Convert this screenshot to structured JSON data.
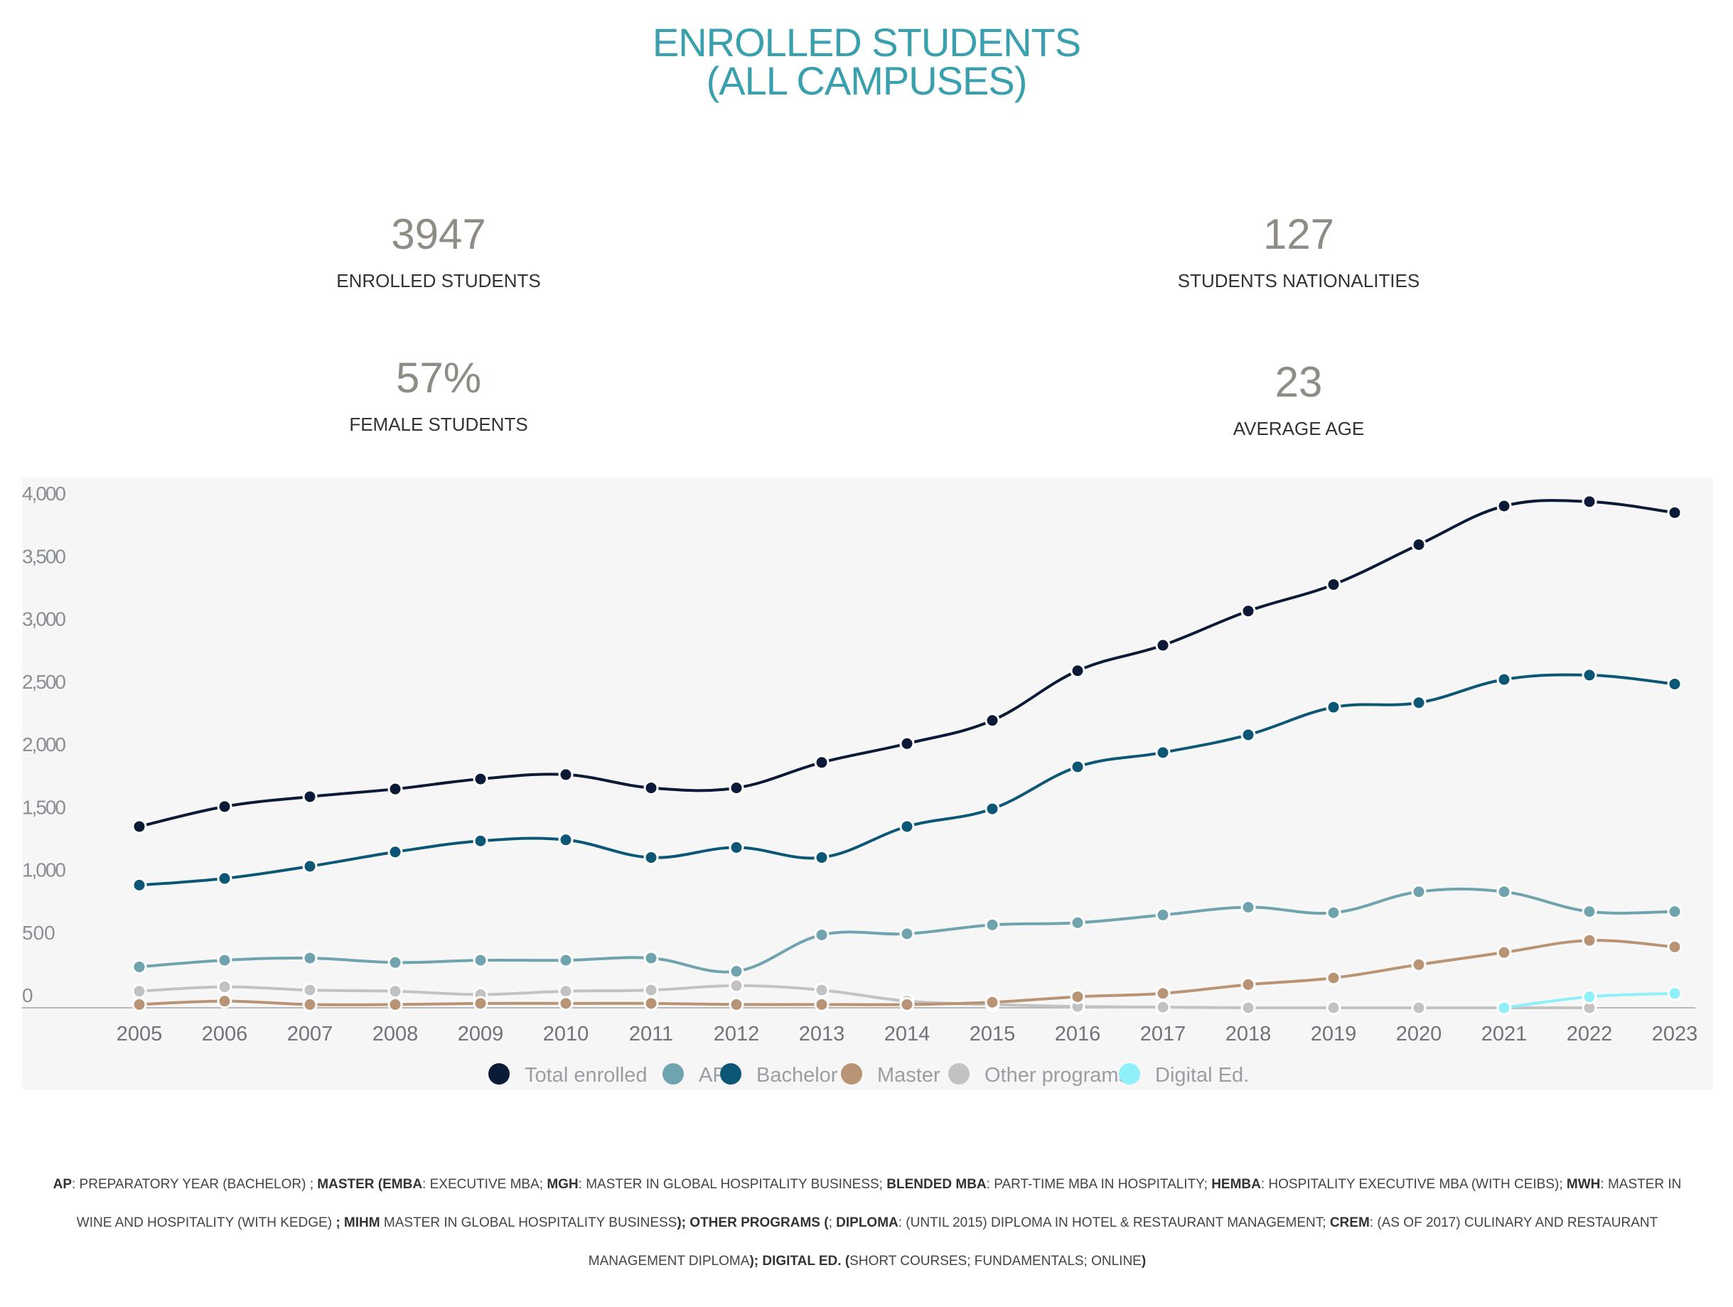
{
  "title": {
    "line1": "ENROLLED STUDENTS",
    "line2": "(ALL CAMPUSES)"
  },
  "stats": [
    {
      "value": "3947",
      "label": "ENROLLED STUDENTS"
    },
    {
      "value": "127",
      "label": "STUDENTS NATIONALITIES"
    },
    {
      "value": "57%",
      "label": "FEMALE STUDENTS"
    },
    {
      "value": "23",
      "label": "AVERAGE AGE"
    }
  ],
  "chart_data": {
    "type": "line",
    "title": "",
    "xlabel": "",
    "ylabel": "",
    "ylim": [
      0,
      4000
    ],
    "y_ticks": [
      "0",
      "500",
      "1,000",
      "1,500",
      "2,000",
      "2,500",
      "3,000",
      "3,500",
      "4,000"
    ],
    "grid": false,
    "legend_position": "bottom",
    "x": [
      "2005",
      "2006",
      "2007",
      "2008",
      "2009",
      "2010",
      "2011",
      "2012",
      "2013",
      "2014",
      "2015",
      "2016",
      "2017",
      "2018",
      "2019",
      "2020",
      "2021",
      "2022",
      "2023"
    ],
    "series": [
      {
        "name": "Total enrolled",
        "color": "#0b1a36",
        "values": [
          1445,
          1604,
          1683,
          1744,
          1824,
          1859,
          1753,
          1753,
          1956,
          2106,
          2291,
          2687,
          2890,
          3163,
          3374,
          3692,
          4000,
          4035,
          3947
        ]
      },
      {
        "name": "AP",
        "color": "#6fa3ae",
        "values": [
          326,
          379,
          396,
          361,
          379,
          379,
          396,
          291,
          581,
          590,
          661,
          678,
          740,
          802,
          758,
          925,
          925,
          767,
          767
        ]
      },
      {
        "name": "Bachelor",
        "color": "#0d5776",
        "values": [
          978,
          1031,
          1128,
          1242,
          1330,
          1339,
          1198,
          1278,
          1198,
          1445,
          1586,
          1921,
          2035,
          2176,
          2396,
          2432,
          2617,
          2652,
          2581
        ]
      },
      {
        "name": "Master",
        "color": "#b99474",
        "values": [
          26,
          53,
          26,
          26,
          35,
          35,
          35,
          26,
          26,
          26,
          44,
          88,
          115,
          185,
          238,
          344,
          441,
          537,
          485
        ]
      },
      {
        "name": "Other programs",
        "color": "#c2c2c2",
        "values": [
          132,
          167,
          141,
          132,
          106,
          132,
          141,
          176,
          141,
          53,
          26,
          10,
          5,
          0,
          0,
          0,
          0,
          0,
          null
        ]
      },
      {
        "name": "Digital Ed.",
        "color": "#8ff0fa",
        "values": [
          null,
          null,
          null,
          null,
          null,
          null,
          null,
          null,
          null,
          null,
          null,
          null,
          null,
          null,
          null,
          null,
          0,
          88,
          115
        ]
      }
    ]
  },
  "footnote": [
    {
      "t": "AP",
      "b": true
    },
    {
      "t": ": PREPARATORY YEAR (BACHELOR) ; ",
      "b": false
    },
    {
      "t": "MASTER (EMBA",
      "b": true
    },
    {
      "t": ": EXECUTIVE MBA; ",
      "b": false
    },
    {
      "t": "MGH",
      "b": true
    },
    {
      "t": ": MASTER IN GLOBAL HOSPITALITY BUSINESS; ",
      "b": false
    },
    {
      "t": "BLENDED MBA",
      "b": true
    },
    {
      "t": ": PART-TIME MBA IN HOSPITALITY; ",
      "b": false
    },
    {
      "t": "HEMBA",
      "b": true
    },
    {
      "t": ": HOSPITALITY EXECUTIVE MBA (WITH CEIBS); ",
      "b": false
    },
    {
      "t": "MWH",
      "b": true
    },
    {
      "t": ": MASTER IN WINE AND HOSPITALITY (WITH KEDGE) ",
      "b": false
    },
    {
      "t": "; MIHM",
      "b": true
    },
    {
      "t": " MASTER IN GLOBAL HOSPITALITY BUSINESS",
      "b": false
    },
    {
      "t": "); OTHER PROGRAMS (",
      "b": true
    },
    {
      "t": "; ",
      "b": false
    },
    {
      "t": "DIPLOMA",
      "b": true
    },
    {
      "t": ": (UNTIL 2015) DIPLOMA IN HOTEL & RESTAURANT MANAGEMENT; ",
      "b": false
    },
    {
      "t": "CREM",
      "b": true
    },
    {
      "t": ": (AS OF 2017) CULINARY AND RESTAURANT MANAGEMENT DIPLOMA",
      "b": false
    },
    {
      "t": "); DIGITAL ED. (",
      "b": true
    },
    {
      "t": "SHORT COURSES; FUNDAMENTALS; ONLINE",
      "b": false
    },
    {
      "t": ")",
      "b": true
    }
  ]
}
